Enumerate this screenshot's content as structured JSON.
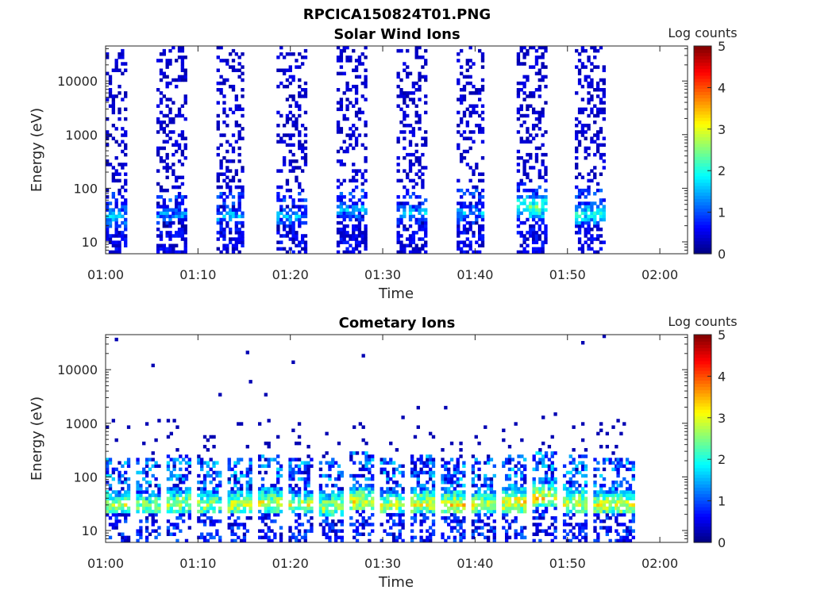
{
  "figure": {
    "title": "RPCICA150824T01.PNG",
    "colorbar_label": "Log counts"
  },
  "chart_data": [
    {
      "type": "heatmap",
      "title": "Solar Wind Ions",
      "xlabel": "Time",
      "ylabel": "Energy (eV)",
      "x_ticks": [
        "01:00",
        "01:10",
        "01:20",
        "01:30",
        "01:40",
        "01:50",
        "02:00"
      ],
      "x_tick_minutes": [
        0,
        10,
        20,
        30,
        40,
        50,
        60
      ],
      "xlim_minutes": [
        0,
        63
      ],
      "y_scale": "log",
      "y_ticks": [
        "10",
        "100",
        "1000",
        "10000"
      ],
      "y_tick_values": [
        10,
        100,
        1000,
        10000
      ],
      "ylim": [
        6,
        45000
      ],
      "colorbar": {
        "label": "Log counts",
        "ticks": [
          "0",
          "1",
          "2",
          "3",
          "4",
          "5"
        ],
        "range": [
          0,
          5
        ]
      },
      "colormap": "jet",
      "data_end_minute": 57,
      "scans": [
        {
          "start_minute": 0.0,
          "end_minute": 2.3,
          "peak_energy_eV": 30,
          "peak_log_counts": 2.1
        },
        {
          "start_minute": 5.5,
          "end_minute": 8.5,
          "peak_energy_eV": 32,
          "peak_log_counts": 1.8
        },
        {
          "start_minute": 12.0,
          "end_minute": 14.8,
          "peak_energy_eV": 30,
          "peak_log_counts": 2.0
        },
        {
          "start_minute": 18.5,
          "end_minute": 21.5,
          "peak_energy_eV": 30,
          "peak_log_counts": 1.9
        },
        {
          "start_minute": 25.0,
          "end_minute": 28.0,
          "peak_energy_eV": 40,
          "peak_log_counts": 2.0
        },
        {
          "start_minute": 31.5,
          "end_minute": 34.5,
          "peak_energy_eV": 35,
          "peak_log_counts": 2.0
        },
        {
          "start_minute": 38.0,
          "end_minute": 40.8,
          "peak_energy_eV": 35,
          "peak_log_counts": 2.0
        },
        {
          "start_minute": 44.5,
          "end_minute": 47.5,
          "peak_energy_eV": 45,
          "peak_log_counts": 2.8
        },
        {
          "start_minute": 50.8,
          "end_minute": 53.8,
          "peak_energy_eV": 33,
          "peak_log_counts": 2.5
        }
      ]
    },
    {
      "type": "heatmap",
      "title": "Cometary Ions",
      "xlabel": "Time",
      "ylabel": "Energy (eV)",
      "x_ticks": [
        "01:00",
        "01:10",
        "01:20",
        "01:30",
        "01:40",
        "01:50",
        "02:00"
      ],
      "x_tick_minutes": [
        0,
        10,
        20,
        30,
        40,
        50,
        60
      ],
      "xlim_minutes": [
        0,
        63
      ],
      "y_scale": "log",
      "y_ticks": [
        "10",
        "100",
        "1000",
        "10000"
      ],
      "y_tick_values": [
        10,
        100,
        1000,
        10000
      ],
      "ylim": [
        6,
        45000
      ],
      "colorbar": {
        "label": "Log counts",
        "ticks": [
          "0",
          "1",
          "2",
          "3",
          "4",
          "5"
        ],
        "range": [
          0,
          5
        ]
      },
      "colormap": "jet",
      "data_end_minute": 57,
      "scans": [
        {
          "start_minute": 0.0,
          "end_minute": 2.4,
          "peak_energy_eV": 30,
          "peak_log_counts": 3.4
        },
        {
          "start_minute": 3.3,
          "end_minute": 5.8,
          "peak_energy_eV": 30,
          "peak_log_counts": 3.2
        },
        {
          "start_minute": 6.6,
          "end_minute": 9.1,
          "peak_energy_eV": 32,
          "peak_log_counts": 3.4
        },
        {
          "start_minute": 9.9,
          "end_minute": 12.4,
          "peak_energy_eV": 30,
          "peak_log_counts": 3.3
        },
        {
          "start_minute": 13.2,
          "end_minute": 15.7,
          "peak_energy_eV": 30,
          "peak_log_counts": 3.5
        },
        {
          "start_minute": 16.5,
          "end_minute": 19.0,
          "peak_energy_eV": 33,
          "peak_log_counts": 3.5
        },
        {
          "start_minute": 19.8,
          "end_minute": 22.3,
          "peak_energy_eV": 30,
          "peak_log_counts": 3.4
        },
        {
          "start_minute": 23.1,
          "end_minute": 25.6,
          "peak_energy_eV": 28,
          "peak_log_counts": 3.4
        },
        {
          "start_minute": 26.4,
          "end_minute": 28.9,
          "peak_energy_eV": 35,
          "peak_log_counts": 3.6
        },
        {
          "start_minute": 29.7,
          "end_minute": 32.2,
          "peak_energy_eV": 30,
          "peak_log_counts": 3.4
        },
        {
          "start_minute": 33.0,
          "end_minute": 35.5,
          "peak_energy_eV": 32,
          "peak_log_counts": 3.6
        },
        {
          "start_minute": 36.3,
          "end_minute": 38.8,
          "peak_energy_eV": 30,
          "peak_log_counts": 3.7
        },
        {
          "start_minute": 39.6,
          "end_minute": 42.1,
          "peak_energy_eV": 30,
          "peak_log_counts": 3.5
        },
        {
          "start_minute": 42.9,
          "end_minute": 45.4,
          "peak_energy_eV": 33,
          "peak_log_counts": 3.8
        },
        {
          "start_minute": 46.2,
          "end_minute": 48.7,
          "peak_energy_eV": 40,
          "peak_log_counts": 3.7
        },
        {
          "start_minute": 49.5,
          "end_minute": 52.0,
          "peak_energy_eV": 32,
          "peak_log_counts": 3.6
        },
        {
          "start_minute": 52.8,
          "end_minute": 55.3,
          "peak_energy_eV": 30,
          "peak_log_counts": 3.5
        },
        {
          "start_minute": 55.3,
          "end_minute": 57.0,
          "peak_energy_eV": 30,
          "peak_log_counts": 3.6
        }
      ]
    }
  ]
}
